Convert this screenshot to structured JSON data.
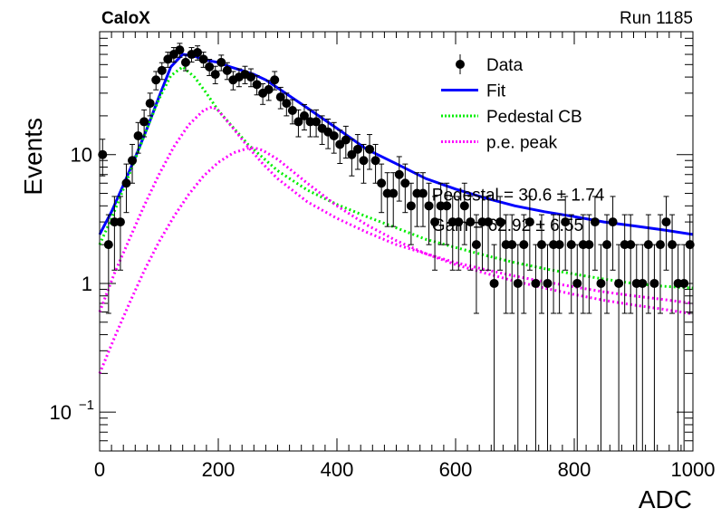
{
  "header": {
    "experiment_label": "CaloX",
    "run_label": "Run 1185"
  },
  "chart_data": {
    "type": "scatter",
    "title": "",
    "xlabel": "ADC",
    "ylabel": "Events",
    "xlim": [
      0,
      1000
    ],
    "ylim": [
      0.05,
      90
    ],
    "y_scale": "log",
    "x_ticks": [
      0,
      200,
      400,
      600,
      800,
      1000
    ],
    "x_tick_labels": [
      "0",
      "200",
      "400",
      "600",
      "800",
      "1000"
    ],
    "y_tick_labels": [
      {
        "value": 10,
        "label": "10"
      },
      {
        "value": 1,
        "label": "1"
      },
      {
        "value": 0.1,
        "label": "10",
        "exponent": "−1"
      }
    ],
    "legend_position": "top-right",
    "series": [
      {
        "name": "Data",
        "kind": "points_with_errors",
        "color": "#000000",
        "x": [
          5,
          15,
          25,
          35,
          45,
          55,
          65,
          75,
          85,
          95,
          105,
          115,
          125,
          135,
          145,
          155,
          165,
          175,
          185,
          195,
          205,
          215,
          225,
          235,
          245,
          255,
          265,
          275,
          285,
          295,
          305,
          315,
          325,
          335,
          345,
          355,
          365,
          375,
          385,
          395,
          405,
          415,
          425,
          435,
          445,
          455,
          465,
          475,
          485,
          495,
          505,
          515,
          525,
          535,
          545,
          555,
          565,
          575,
          585,
          595,
          605,
          615,
          625,
          635,
          645,
          655,
          665,
          675,
          685,
          695,
          705,
          715,
          725,
          735,
          745,
          755,
          765,
          775,
          785,
          795,
          805,
          815,
          825,
          835,
          845,
          855,
          865,
          875,
          885,
          895,
          905,
          915,
          925,
          935,
          945,
          955,
          965,
          975,
          985,
          995
        ],
        "y": [
          10,
          2,
          3,
          3,
          6,
          9,
          14,
          18,
          25,
          38,
          45,
          55,
          60,
          65,
          52,
          60,
          62,
          55,
          48,
          42,
          52,
          45,
          38,
          40,
          42,
          40,
          35,
          30,
          32,
          38,
          28,
          25,
          22,
          18,
          20,
          18,
          18,
          16,
          15,
          14,
          12,
          13,
          10,
          11,
          9,
          11,
          9,
          6,
          5,
          5,
          7,
          6,
          4,
          5,
          5,
          4,
          3,
          4,
          4,
          3,
          3,
          4,
          3,
          2,
          3,
          3,
          1,
          3,
          2,
          2,
          1,
          2,
          3,
          1,
          2,
          1,
          2,
          2,
          3,
          2,
          1,
          2,
          2,
          3,
          1,
          2,
          3,
          1,
          2,
          2,
          1,
          1,
          2,
          1,
          2,
          3,
          2,
          1,
          1,
          2
        ]
      },
      {
        "name": "Fit",
        "kind": "line",
        "color": "#0000ff",
        "x": [
          0,
          20,
          40,
          60,
          80,
          100,
          120,
          140,
          160,
          180,
          200,
          220,
          240,
          260,
          280,
          300,
          350,
          400,
          450,
          500,
          550,
          600,
          650,
          700,
          750,
          800,
          850,
          900,
          950,
          1000
        ],
        "y": [
          2.4,
          3.6,
          5.8,
          9.5,
          16,
          28,
          48,
          60,
          58,
          54,
          52,
          48,
          45,
          42,
          38,
          33,
          23,
          16,
          11,
          8.5,
          6.5,
          5.4,
          4.6,
          4.0,
          3.6,
          3.3,
          3.0,
          2.8,
          2.6,
          2.4
        ]
      },
      {
        "name": "Pedestal CB",
        "kind": "dotted_line",
        "color": "#00ee00",
        "x": [
          0,
          20,
          40,
          60,
          80,
          100,
          120,
          140,
          160,
          180,
          200,
          250,
          300,
          350,
          400,
          450,
          500,
          550,
          600,
          650,
          700,
          750,
          800,
          850,
          900,
          950,
          1000
        ],
        "y": [
          2.0,
          3.2,
          5.4,
          9.2,
          16,
          27,
          41,
          48,
          40,
          30,
          22,
          12,
          7.5,
          5.3,
          4.1,
          3.3,
          2.7,
          2.2,
          1.9,
          1.65,
          1.45,
          1.3,
          1.18,
          1.08,
          1.0,
          0.95,
          0.92
        ]
      },
      {
        "name": "p.e. peak",
        "kind": "dotted_line",
        "color": "#ff00ff",
        "x": [
          0,
          25,
          50,
          75,
          100,
          125,
          150,
          175,
          190,
          200,
          225,
          250,
          275,
          300,
          350,
          400,
          450,
          500,
          550,
          600,
          650,
          700,
          750,
          800,
          850,
          900,
          950,
          1000
        ],
        "y": [
          0.6,
          1.2,
          2.2,
          4.0,
          7.0,
          11.5,
          17,
          22,
          23.5,
          22,
          16,
          11.5,
          8.5,
          6.5,
          4.3,
          3.2,
          2.5,
          2.0,
          1.7,
          1.45,
          1.28,
          1.14,
          1.03,
          0.94,
          0.86,
          0.8,
          0.75,
          0.7
        ]
      },
      {
        "name": "p.e. peak",
        "kind": "dotted_line",
        "color": "#ff00ff",
        "legend": false,
        "x": [
          0,
          25,
          50,
          75,
          100,
          125,
          150,
          175,
          200,
          225,
          250,
          260,
          275,
          300,
          350,
          400,
          450,
          500,
          550,
          600,
          650,
          700,
          750,
          800,
          850,
          900,
          950,
          1000
        ],
        "y": [
          0.2,
          0.38,
          0.7,
          1.25,
          2.1,
          3.3,
          4.9,
          6.8,
          8.7,
          10.3,
          11.2,
          11.3,
          10.8,
          9.2,
          6.0,
          4.0,
          2.85,
          2.15,
          1.7,
          1.4,
          1.2,
          1.04,
          0.92,
          0.82,
          0.74,
          0.68,
          0.63,
          0.58
        ]
      }
    ],
    "annotations": [
      {
        "text": "Pedestal = 30.6 ± 1.74",
        "x": 560,
        "y": 4.4
      },
      {
        "text": "Gain = 62.92 ± 6.55",
        "x": 560,
        "y": 2.55
      }
    ]
  }
}
